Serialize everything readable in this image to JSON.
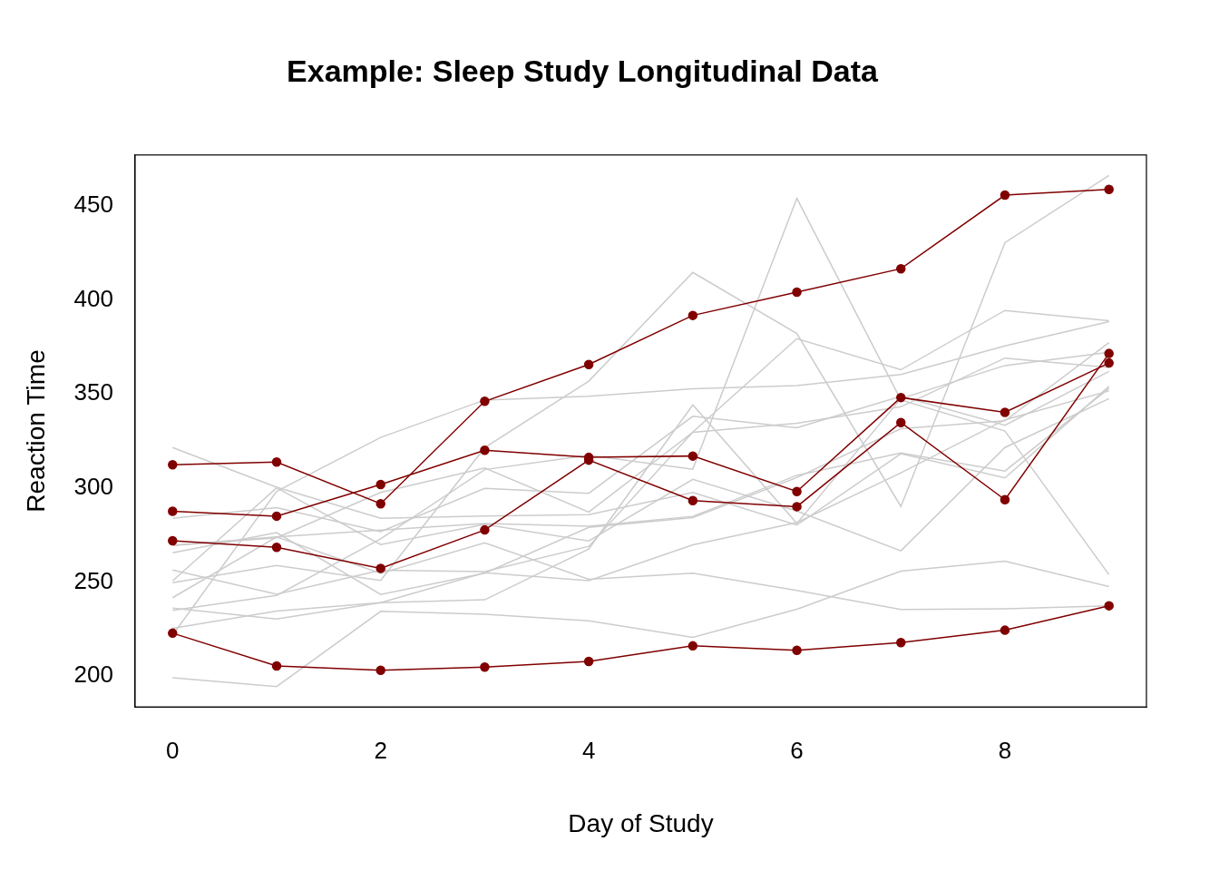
{
  "chart_data": {
    "type": "line",
    "title": "Example: Sleep Study Longitudinal Data",
    "x_label": "Day of Study",
    "y_label": "Reaction Time",
    "x": [
      0,
      1,
      2,
      3,
      4,
      5,
      6,
      7,
      8,
      9
    ],
    "xlim": [
      -0.36,
      9.36
    ],
    "xticks": [
      0,
      2,
      4,
      6,
      8
    ],
    "ylim": [
      183.45,
      477.23
    ],
    "yticks": [
      200,
      250,
      300,
      350,
      400,
      450
    ],
    "grid": false,
    "series": [
      {
        "color": "#800000",
        "marker": "circle",
        "line_style": "solid",
        "values": [
          312.36,
          313.8,
          291.61,
          346.12,
          365.73,
          391.84,
          404.26,
          416.69,
          455.86,
          458.92
        ]
      },
      {
        "color": "#800000",
        "marker": "circle",
        "line_style": "solid",
        "values": [
          287.61,
          285.0,
          301.82,
          320.12,
          316.28,
          317.0,
          298.14,
          348.13,
          340.28,
          366.51
        ]
      },
      {
        "color": "#800000",
        "marker": "circle",
        "line_style": "solid",
        "values": [
          271.93,
          268.44,
          257.24,
          277.66,
          314.82,
          293.32,
          290.08,
          334.82,
          293.75,
          371.58
        ]
      },
      {
        "color": "#800000",
        "marker": "circle",
        "line_style": "solid",
        "values": [
          222.73,
          205.27,
          202.98,
          204.71,
          207.72,
          215.96,
          213.63,
          217.73,
          224.3,
          237.31
        ]
      },
      {
        "color": "#cccccc",
        "marker": "none",
        "line_style": "solid",
        "values": [
          249.56,
          258.7,
          250.8,
          321.44,
          356.85,
          414.69,
          382.2,
          290.15,
          430.59,
          466.35
        ]
      },
      {
        "color": "#cccccc",
        "marker": "none",
        "line_style": "solid",
        "values": [
          199.05,
          194.33,
          234.32,
          232.84,
          229.31,
          220.46,
          235.42,
          255.75,
          261.01,
          247.52
        ]
      },
      {
        "color": "#cccccc",
        "marker": "none",
        "line_style": "solid",
        "values": [
          321.54,
          300.4,
          283.86,
          285.13,
          285.8,
          297.59,
          280.24,
          318.26,
          305.35,
          354.05
        ]
      },
      {
        "color": "#cccccc",
        "marker": "none",
        "line_style": "solid",
        "values": [
          234.86,
          242.81,
          272.96,
          309.77,
          317.46,
          309.99,
          454.16,
          346.83,
          330.3,
          253.86
        ]
      },
      {
        "color": "#cccccc",
        "marker": "none",
        "line_style": "solid",
        "values": [
          283.84,
          289.56,
          276.77,
          299.8,
          297.17,
          338.17,
          332.02,
          348.84,
          333.36,
          362.04
        ]
      },
      {
        "color": "#cccccc",
        "marker": "none",
        "line_style": "solid",
        "values": [
          265.47,
          276.2,
          243.36,
          254.68,
          279.02,
          284.19,
          305.52,
          331.52,
          335.75,
          377.32
        ]
      },
      {
        "color": "#cccccc",
        "marker": "none",
        "line_style": "solid",
        "values": [
          241.61,
          273.95,
          254.49,
          270.8,
          251.45,
          254.64,
          245.45,
          235.31,
          235.75,
          237.25
        ]
      },
      {
        "color": "#cccccc",
        "marker": "none",
        "line_style": "solid",
        "values": [
          236.1,
          230.32,
          238.92,
          254.92,
          250.71,
          269.77,
          281.56,
          308.1,
          336.28,
          351.65
        ]
      },
      {
        "color": "#cccccc",
        "marker": "none",
        "line_style": "solid",
        "values": [
          256.29,
          243.46,
          256.2,
          255.53,
          268.92,
          329.72,
          379.45,
          362.91,
          394.49,
          389.05
        ]
      },
      {
        "color": "#cccccc",
        "marker": "none",
        "line_style": "solid",
        "values": [
          250.53,
          300.06,
          269.89,
          280.58,
          271.83,
          304.63,
          287.75,
          266.56,
          321.54,
          347.56
        ]
      },
      {
        "color": "#cccccc",
        "marker": "none",
        "line_style": "solid",
        "values": [
          221.68,
          298.19,
          326.88,
          346.8,
          348.84,
          352.83,
          354.43,
          360.43,
          375.64,
          388.54
        ]
      },
      {
        "color": "#cccccc",
        "marker": "none",
        "line_style": "solid",
        "values": [
          225.26,
          234.52,
          238.9,
          240.47,
          267.54,
          344.19,
          281.15,
          347.59,
          365.16,
          372.23
        ]
      },
      {
        "color": "#cccccc",
        "marker": "none",
        "line_style": "solid",
        "values": [
          269.41,
          273.47,
          297.6,
          310.63,
          287.17,
          329.61,
          334.48,
          343.22,
          369.14,
          364.12
        ]
      },
      {
        "color": "#cccccc",
        "marker": "none",
        "line_style": "solid",
        "values": [
          269.52,
          273.94,
          277.58,
          281.1,
          279.67,
          284.89,
          306.72,
          318.6,
          309.0,
          353.0
        ]
      }
    ]
  }
}
